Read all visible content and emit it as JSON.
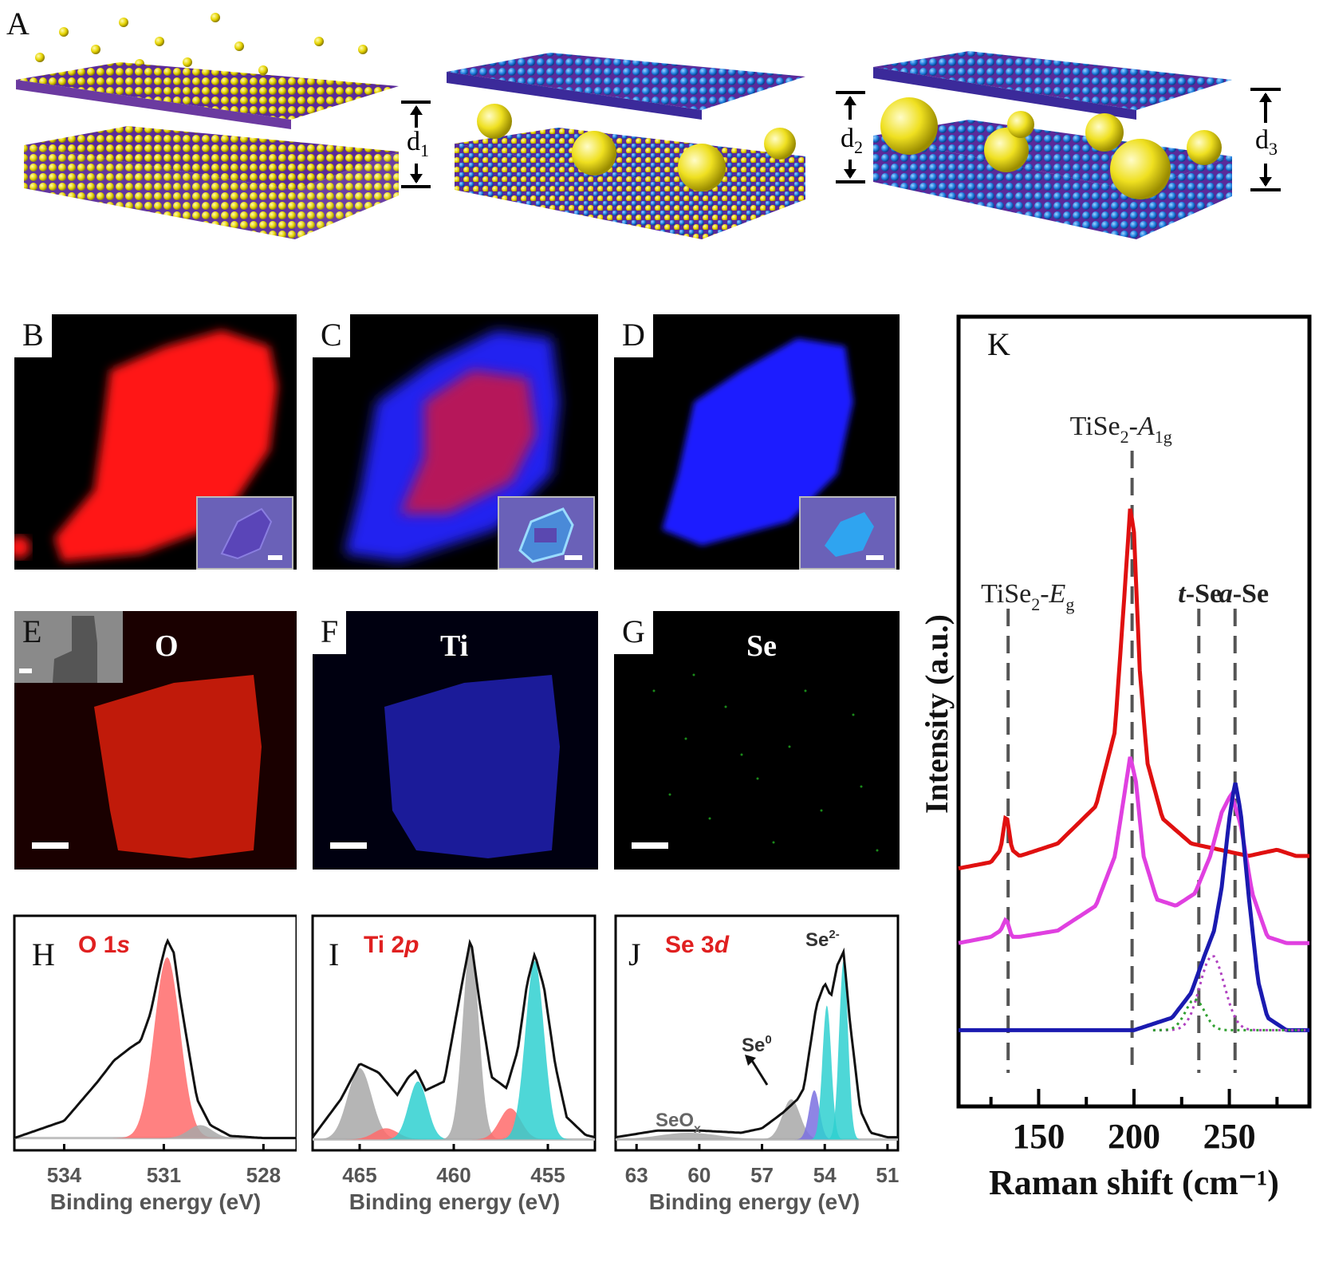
{
  "panels": {
    "A": {
      "letter": "A",
      "spacings": [
        {
          "main": "d",
          "sub": "1"
        },
        {
          "main": "d",
          "sub": "2"
        },
        {
          "main": "d",
          "sub": "3"
        }
      ]
    },
    "B": {
      "letter": "B"
    },
    "C": {
      "letter": "C"
    },
    "D": {
      "letter": "D"
    },
    "E": {
      "letter": "E",
      "element": "O"
    },
    "F": {
      "letter": "F",
      "element": "Ti"
    },
    "G": {
      "letter": "G",
      "element": "Se"
    },
    "H": {
      "letter": "H",
      "title_main": "O 1",
      "title_ital": "s"
    },
    "I": {
      "letter": "I",
      "title_main": "Ti 2",
      "title_ital": "p"
    },
    "J": {
      "letter": "J",
      "title_main": "Se 3",
      "title_ital": "d",
      "label_se2": "Se",
      "label_se2_sup": "2-",
      "label_se0": "Se",
      "label_se0_sup": "0",
      "label_seox": "SeO",
      "label_seox_sub": "x"
    },
    "K": {
      "letter": "K"
    }
  },
  "colors": {
    "red_map": "#ff1a1a",
    "blue_map": "#1a1aff",
    "xps_red": "#ff6b6b",
    "xps_cyan": "#2fd0d0",
    "xps_gray": "#a8a8a8",
    "xps_purple": "#7a70e0",
    "raman_red": "#e01010",
    "raman_magenta": "#e040e0",
    "raman_blue": "#1a1ab0"
  },
  "chart_data": [
    {
      "type": "line",
      "panel": "H",
      "xlabel": "Binding energy (eV)",
      "x_ticks": [
        "534",
        "531",
        "528"
      ],
      "xlim": [
        535.5,
        527
      ],
      "series": [
        {
          "x": [
            535.5,
            534,
            533,
            532.5,
            532,
            531.7,
            531.4,
            531.1,
            530.9,
            530.7,
            530.5,
            530.2,
            530,
            529.6,
            529,
            528,
            527
          ],
          "values": [
            0.02,
            0.1,
            0.28,
            0.38,
            0.44,
            0.47,
            0.6,
            0.82,
            0.94,
            0.88,
            0.66,
            0.38,
            0.2,
            0.08,
            0.03,
            0.02,
            0.02
          ]
        }
      ]
    },
    {
      "type": "line",
      "panel": "I",
      "xlabel": "Binding energy (eV)",
      "x_ticks": [
        "465",
        "460",
        "455"
      ],
      "xlim": [
        467.5,
        452.5
      ],
      "series": [
        {
          "x": [
            467.5,
            466,
            465,
            464,
            463,
            462.4,
            462,
            461.5,
            460.5,
            459.6,
            459.1,
            458.6,
            458,
            457.2,
            456.6,
            456.1,
            455.7,
            455.2,
            454.6,
            454,
            453,
            452.5
          ],
          "values": [
            0.03,
            0.2,
            0.36,
            0.32,
            0.22,
            0.3,
            0.33,
            0.24,
            0.28,
            0.7,
            0.92,
            0.62,
            0.3,
            0.25,
            0.42,
            0.72,
            0.85,
            0.7,
            0.35,
            0.12,
            0.04,
            0.03
          ]
        }
      ]
    },
    {
      "type": "line",
      "panel": "J",
      "xlabel": "Binding energy (eV)",
      "x_ticks": [
        "63",
        "60",
        "57",
        "54",
        "51"
      ],
      "xlim": [
        64,
        50.5
      ],
      "series": [
        {
          "x": [
            64,
            62,
            60,
            58,
            57,
            56,
            55.3,
            55,
            54.4,
            54.0,
            53.7,
            53.4,
            53.1,
            52.8,
            52.3,
            51.8,
            51,
            50.5
          ],
          "values": [
            0.03,
            0.06,
            0.06,
            0.05,
            0.07,
            0.14,
            0.2,
            0.25,
            0.62,
            0.72,
            0.66,
            0.8,
            0.86,
            0.55,
            0.15,
            0.05,
            0.03,
            0.03
          ]
        }
      ]
    },
    {
      "type": "line",
      "panel": "K",
      "xlabel": "Raman shift (cm⁻¹)",
      "ylabel": "Intensity (a.u.)",
      "x_ticks": [
        "150",
        "200",
        "250"
      ],
      "xlim": [
        108,
        292
      ],
      "peak_labels": [
        {
          "x": 134,
          "main": "TiSe",
          "sub": "2",
          "dash": "-",
          "ital": "E",
          "ital_sub": "g"
        },
        {
          "x": 199,
          "main": "TiSe",
          "sub": "2",
          "dash": "-",
          "ital": "A",
          "ital_sub": "1g"
        },
        {
          "x": 234,
          "main": "-Se",
          "ital_pre": "t"
        },
        {
          "x": 253,
          "main": "-Se",
          "ital_pre": "a"
        }
      ],
      "series": [
        {
          "name": "",
          "color_key": "raman_red",
          "x": [
            108,
            125,
            130,
            133,
            136,
            140,
            160,
            180,
            190,
            195,
            198,
            200,
            203,
            207,
            215,
            230,
            245,
            260,
            275,
            285,
            292
          ],
          "values": [
            0.28,
            0.29,
            0.31,
            0.37,
            0.31,
            0.3,
            0.32,
            0.38,
            0.5,
            0.72,
            0.86,
            0.82,
            0.6,
            0.45,
            0.36,
            0.32,
            0.31,
            0.3,
            0.31,
            0.3,
            0.3
          ]
        },
        {
          "name": "",
          "color_key": "raman_magenta",
          "x": [
            108,
            125,
            130,
            133,
            136,
            140,
            160,
            180,
            190,
            195,
            198,
            201,
            205,
            212,
            222,
            232,
            240,
            246,
            251,
            256,
            262,
            270,
            280,
            292
          ],
          "values": [
            0.16,
            0.17,
            0.18,
            0.2,
            0.17,
            0.17,
            0.18,
            0.22,
            0.3,
            0.4,
            0.46,
            0.42,
            0.3,
            0.23,
            0.22,
            0.24,
            0.3,
            0.37,
            0.4,
            0.35,
            0.24,
            0.17,
            0.16,
            0.16
          ]
        },
        {
          "name": "",
          "color_key": "raman_blue",
          "x": [
            108,
            150,
            200,
            220,
            230,
            237,
            242,
            246,
            250,
            253,
            256,
            260,
            265,
            270,
            280,
            292
          ],
          "values": [
            0.02,
            0.02,
            0.02,
            0.04,
            0.08,
            0.14,
            0.18,
            0.25,
            0.36,
            0.42,
            0.37,
            0.24,
            0.1,
            0.04,
            0.02,
            0.02
          ]
        }
      ]
    }
  ]
}
